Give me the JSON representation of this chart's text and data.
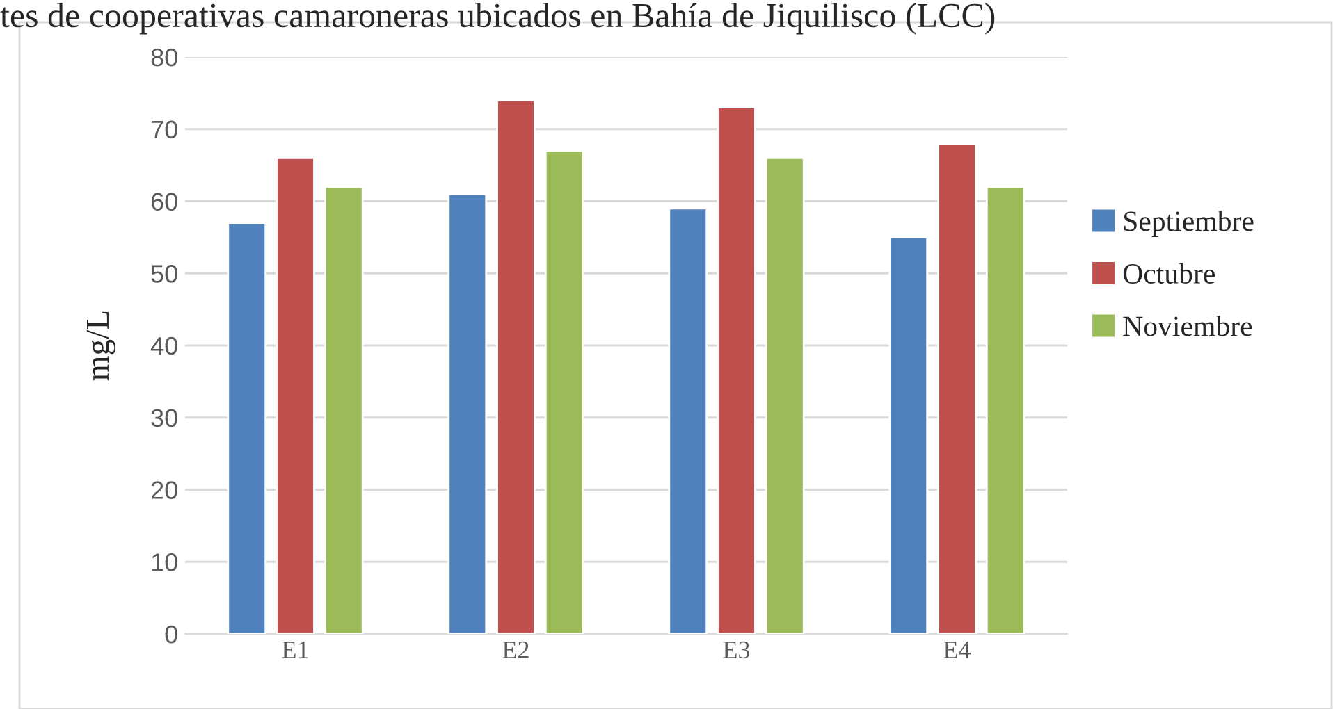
{
  "chart_data": {
    "type": "bar",
    "title": "tes de cooperativas camaroneras ubicados en Bahía de Jiquilisco (LCC)",
    "ylabel": "mg/L",
    "categories": [
      "E1",
      "E2",
      "E3",
      "E4"
    ],
    "series": [
      {
        "name": "Septiembre",
        "color": "#4f81bd",
        "values": [
          57,
          61,
          59,
          55
        ]
      },
      {
        "name": "Octubre",
        "color": "#c0504d",
        "values": [
          66,
          74,
          73,
          68
        ]
      },
      {
        "name": "Noviembre",
        "color": "#9bbb59",
        "values": [
          62,
          67,
          66,
          62
        ]
      }
    ],
    "ylim": [
      0,
      80
    ],
    "yticks": [
      0,
      10,
      20,
      30,
      40,
      50,
      60,
      70,
      80
    ],
    "grid": "y",
    "legend": "right"
  }
}
